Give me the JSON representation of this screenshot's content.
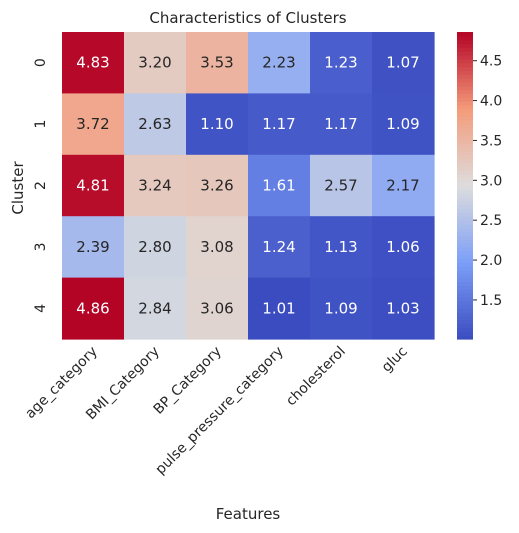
{
  "chart_data": {
    "type": "heatmap",
    "title": "Characteristics of Clusters",
    "xlabel": "Features",
    "ylabel": "Cluster",
    "columns": [
      "age_category",
      "BMI_Category",
      "BP_Category",
      "pulse_pressure_category",
      "cholesterol",
      "gluc"
    ],
    "rows": [
      "0",
      "1",
      "2",
      "3",
      "4"
    ],
    "values": [
      [
        4.83,
        3.2,
        3.53,
        2.23,
        1.23,
        1.07
      ],
      [
        3.72,
        2.63,
        1.1,
        1.17,
        1.17,
        1.09
      ],
      [
        4.81,
        3.24,
        3.26,
        1.61,
        2.57,
        2.17
      ],
      [
        2.39,
        2.8,
        3.08,
        1.24,
        1.13,
        1.06
      ],
      [
        4.86,
        2.84,
        3.06,
        1.01,
        1.09,
        1.03
      ]
    ],
    "value_labels": [
      [
        "4.83",
        "3.20",
        "3.53",
        "2.23",
        "1.23",
        "1.07"
      ],
      [
        "3.72",
        "2.63",
        "1.10",
        "1.17",
        "1.17",
        "1.09"
      ],
      [
        "4.81",
        "3.24",
        "3.26",
        "1.61",
        "2.57",
        "2.17"
      ],
      [
        "2.39",
        "2.80",
        "3.08",
        "1.24",
        "1.13",
        "1.06"
      ],
      [
        "4.86",
        "2.84",
        "3.06",
        "1.01",
        "1.09",
        "1.03"
      ]
    ],
    "colormap": "coolwarm",
    "color_range": [
      1.01,
      4.86
    ],
    "colorbar_ticks": [
      1.5,
      2.0,
      2.5,
      3.0,
      3.5,
      4.0,
      4.5
    ],
    "colorbar_tick_labels": [
      "1.5",
      "2.0",
      "2.5",
      "3.0",
      "3.5",
      "4.0",
      "4.5"
    ],
    "annotated": true
  }
}
